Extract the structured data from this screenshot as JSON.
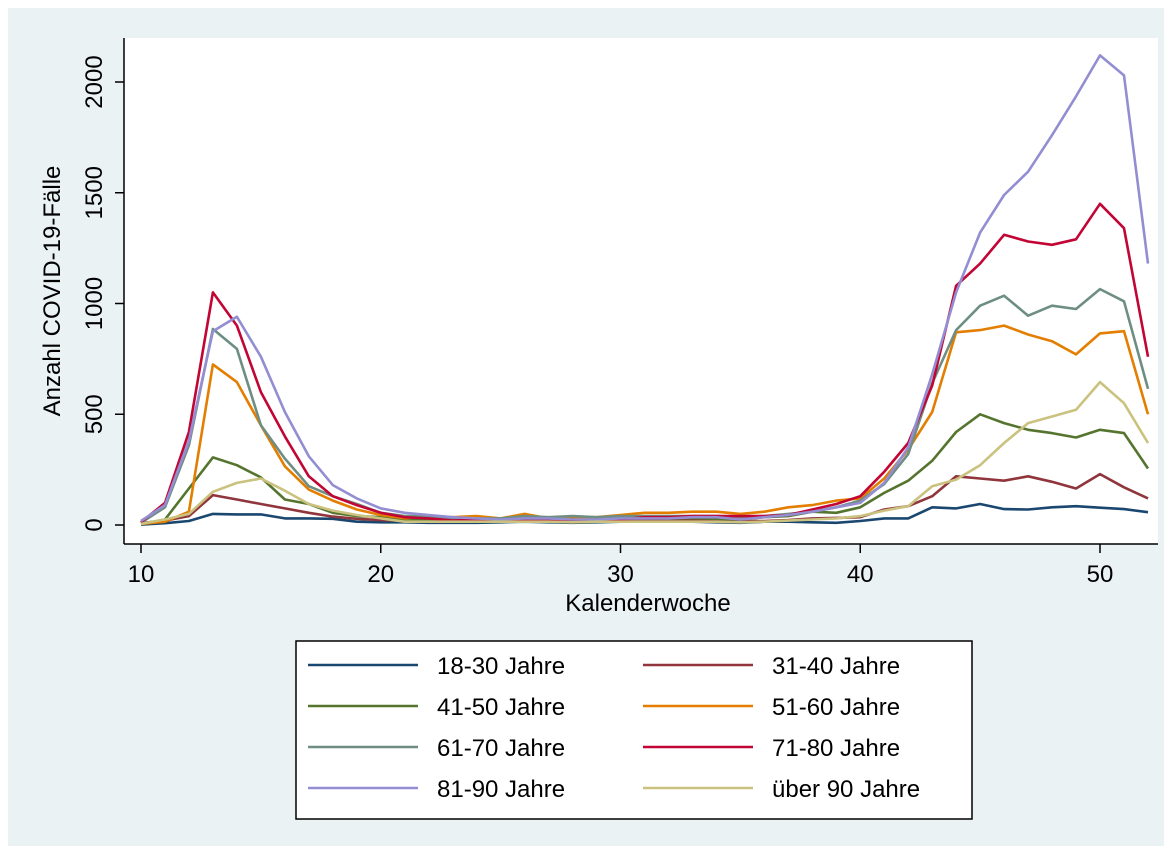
{
  "chart_data": {
    "type": "line",
    "title": "",
    "xlabel": "Kalenderwoche",
    "ylabel": "Anzahl COVID-19-Fälle",
    "xlim": [
      10,
      52
    ],
    "ylim": [
      0,
      2200
    ],
    "xticks": [
      10,
      20,
      30,
      40,
      50
    ],
    "yticks": [
      0,
      500,
      1000,
      1500,
      2000
    ],
    "grid": false,
    "legend_position": "bottom",
    "x": [
      10,
      11,
      12,
      13,
      14,
      15,
      16,
      17,
      18,
      19,
      20,
      21,
      22,
      23,
      24,
      25,
      26,
      27,
      28,
      29,
      30,
      31,
      32,
      33,
      34,
      35,
      36,
      37,
      38,
      39,
      40,
      41,
      42,
      43,
      44,
      45,
      46,
      47,
      48,
      49,
      50,
      51,
      52
    ],
    "series": [
      {
        "name": "18-30 Jahre",
        "color": "#1a476f",
        "values": [
          2,
          8,
          18,
          50,
          48,
          48,
          30,
          30,
          28,
          15,
          12,
          12,
          10,
          10,
          10,
          12,
          15,
          12,
          10,
          12,
          15,
          18,
          15,
          15,
          12,
          10,
          15,
          15,
          12,
          10,
          18,
          30,
          30,
          80,
          75,
          95,
          72,
          70,
          80,
          85,
          78,
          72,
          58
        ]
      },
      {
        "name": "31-40 Jahre",
        "color": "#90353b",
        "values": [
          8,
          20,
          40,
          135,
          115,
          95,
          75,
          55,
          38,
          28,
          22,
          20,
          18,
          18,
          18,
          15,
          20,
          18,
          15,
          18,
          22,
          25,
          25,
          25,
          22,
          18,
          18,
          22,
          30,
          32,
          35,
          70,
          85,
          130,
          220,
          210,
          200,
          220,
          195,
          165,
          230,
          170,
          120
        ]
      },
      {
        "name": "41-50 Jahre",
        "color": "#55752f",
        "values": [
          5,
          25,
          165,
          305,
          270,
          215,
          115,
          95,
          55,
          40,
          35,
          25,
          25,
          22,
          22,
          22,
          25,
          25,
          20,
          25,
          30,
          35,
          30,
          32,
          28,
          25,
          35,
          40,
          60,
          55,
          80,
          145,
          200,
          290,
          420,
          500,
          460,
          430,
          415,
          395,
          430,
          415,
          255
        ]
      },
      {
        "name": "51-60 Jahre",
        "color": "#e37e00",
        "values": [
          5,
          15,
          60,
          725,
          645,
          450,
          265,
          160,
          110,
          70,
          45,
          30,
          40,
          35,
          40,
          30,
          50,
          30,
          35,
          35,
          45,
          55,
          55,
          60,
          60,
          50,
          60,
          80,
          90,
          110,
          120,
          210,
          340,
          510,
          870,
          880,
          900,
          860,
          830,
          770,
          865,
          875,
          500
        ]
      },
      {
        "name": "61-70 Jahre",
        "color": "#6e8e84",
        "values": [
          10,
          80,
          360,
          885,
          795,
          450,
          300,
          175,
          130,
          95,
          55,
          40,
          40,
          30,
          30,
          30,
          40,
          35,
          40,
          35,
          40,
          40,
          40,
          40,
          40,
          35,
          40,
          50,
          60,
          80,
          110,
          185,
          320,
          640,
          880,
          990,
          1035,
          945,
          990,
          975,
          1065,
          1010,
          615
        ]
      },
      {
        "name": "71-80 Jahre",
        "color": "#c10534",
        "values": [
          12,
          100,
          420,
          1050,
          900,
          600,
          400,
          220,
          130,
          90,
          55,
          35,
          30,
          20,
          25,
          22,
          25,
          20,
          25,
          20,
          25,
          35,
          35,
          40,
          40,
          40,
          40,
          45,
          70,
          95,
          130,
          240,
          370,
          630,
          1080,
          1180,
          1310,
          1280,
          1265,
          1290,
          1450,
          1340,
          760
        ]
      },
      {
        "name": "81-90 Jahre",
        "color": "#938dd2",
        "values": [
          18,
          90,
          380,
          875,
          940,
          760,
          510,
          310,
          180,
          120,
          75,
          55,
          45,
          35,
          30,
          25,
          30,
          30,
          25,
          25,
          30,
          30,
          30,
          35,
          35,
          25,
          35,
          45,
          60,
          80,
          100,
          190,
          350,
          680,
          1050,
          1320,
          1490,
          1595,
          1760,
          1935,
          2120,
          2030,
          1180
        ]
      },
      {
        "name": "über 90 Jahre",
        "color": "#cac27e",
        "values": [
          5,
          25,
          50,
          150,
          190,
          210,
          155,
          95,
          65,
          45,
          30,
          15,
          15,
          15,
          15,
          15,
          15,
          15,
          12,
          15,
          15,
          15,
          15,
          15,
          15,
          12,
          15,
          20,
          25,
          30,
          40,
          65,
          85,
          175,
          205,
          270,
          370,
          460,
          490,
          520,
          645,
          550,
          370
        ]
      }
    ]
  }
}
